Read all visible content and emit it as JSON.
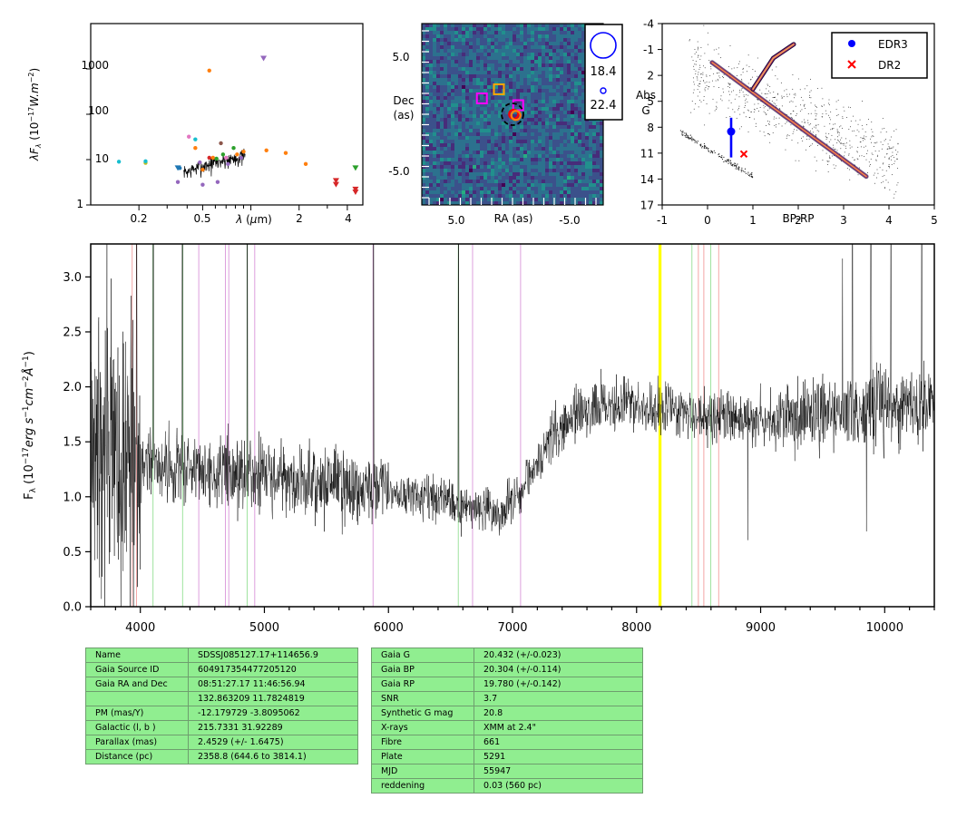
{
  "colors": {
    "spectrum": "#000000",
    "edr3": "#0000ff",
    "dr2": "#ff0000",
    "table_bg": "#90ee90",
    "marker_line": "#ffff00"
  },
  "sed_panel": {
    "ylabel": "λF_λ (10^{-17}W.m^{-2})",
    "xlabel": "λ (μm)",
    "yticks": [
      "1",
      "10",
      "100",
      "1000"
    ],
    "xticks": [
      "0.2",
      "0.5",
      "2",
      "4"
    ]
  },
  "image_panel": {
    "xlabel": "RA (as)",
    "ylabel_line1": "Dec",
    "ylabel_line2": "(as)",
    "xticks": [
      "5.0",
      "-5.0"
    ],
    "yticks": [
      "5.0",
      "-5.0"
    ],
    "mag_large": "18.4",
    "mag_small": "22.4"
  },
  "hr_panel": {
    "ylabel_line1": "Abs",
    "ylabel_line2": "G",
    "xlabel": "BP-RP",
    "yticks": [
      "-4",
      "-1",
      "2",
      "5",
      "8",
      "11",
      "14",
      "17"
    ],
    "xticks": [
      "-1",
      "0",
      "1",
      "2",
      "3",
      "4",
      "5"
    ],
    "legend": [
      "EDR3",
      "DR2"
    ]
  },
  "chart_data": [
    {
      "type": "scatter",
      "name": "sed",
      "xscale": "log",
      "yscale": "log",
      "xlim": [
        0.1,
        5.0
      ],
      "ylim": [
        1,
        10000
      ],
      "points": [
        {
          "x": 0.15,
          "y": 9,
          "color": "#17becf"
        },
        {
          "x": 0.22,
          "y": 8.5,
          "color": "#bcbd22"
        },
        {
          "x": 0.22,
          "y": 9.2,
          "color": "#17becf"
        },
        {
          "x": 0.36,
          "y": 6.5,
          "color": "#1f77b4"
        },
        {
          "x": 0.35,
          "y": 3.2,
          "color": "#9467bd"
        },
        {
          "x": 0.41,
          "y": 32,
          "color": "#e377c2"
        },
        {
          "x": 0.45,
          "y": 28,
          "color": "#17becf"
        },
        {
          "x": 0.45,
          "y": 18,
          "color": "#ff7f0e"
        },
        {
          "x": 0.48,
          "y": 8.7,
          "color": "#9467bd"
        },
        {
          "x": 0.5,
          "y": 2.8,
          "color": "#9467bd"
        },
        {
          "x": 0.5,
          "y": 6,
          "color": "#ff7f0e"
        },
        {
          "x": 0.55,
          "y": 920,
          "color": "#ff7f0e"
        },
        {
          "x": 0.55,
          "y": 11,
          "color": "#d62728"
        },
        {
          "x": 0.58,
          "y": 11,
          "color": "#ff7f0e"
        },
        {
          "x": 0.61,
          "y": 10.5,
          "color": "#2ca02c"
        },
        {
          "x": 0.62,
          "y": 3.2,
          "color": "#9467bd"
        },
        {
          "x": 0.65,
          "y": 23,
          "color": "#8c564b"
        },
        {
          "x": 0.67,
          "y": 13,
          "color": "#2ca02c"
        },
        {
          "x": 0.7,
          "y": 11,
          "color": "#e377c2"
        },
        {
          "x": 0.72,
          "y": 8,
          "color": "#9467bd"
        },
        {
          "x": 0.78,
          "y": 18,
          "color": "#2ca02c"
        },
        {
          "x": 0.82,
          "y": 13,
          "color": "#ff7f0e"
        },
        {
          "x": 0.87,
          "y": 11,
          "color": "#9467bd"
        },
        {
          "x": 0.9,
          "y": 15,
          "color": "#ff7f0e"
        },
        {
          "x": 1.25,
          "y": 16,
          "color": "#ff7f0e"
        },
        {
          "x": 1.65,
          "y": 14,
          "color": "#ff7f0e"
        },
        {
          "x": 2.2,
          "y": 8,
          "color": "#ff7f0e"
        }
      ],
      "upper_limits": [
        {
          "x": 0.35,
          "y": 6.5,
          "color": "#1f77b4"
        },
        {
          "x": 1.2,
          "y": 1700,
          "color": "#9467bd"
        },
        {
          "x": 3.4,
          "y": 3.4,
          "color": "#d62728"
        },
        {
          "x": 3.4,
          "y": 2.8,
          "color": "#d62728"
        },
        {
          "x": 4.5,
          "y": 6.5,
          "color": "#2ca02c"
        },
        {
          "x": 4.5,
          "y": 2.2,
          "color": "#d62728"
        },
        {
          "x": 4.5,
          "y": 1.9,
          "color": "#d62728"
        }
      ],
      "spectrum_segment": {
        "xrange": [
          0.38,
          0.92
        ],
        "yrange": [
          4,
          14
        ]
      }
    },
    {
      "type": "heatmap",
      "name": "sky_image",
      "xlim": [
        8,
        -8
      ],
      "ylim": [
        -8,
        8
      ],
      "markers": [
        {
          "shape": "square",
          "x": 2.7,
          "y": 1.4,
          "color": "#ff00ff"
        },
        {
          "shape": "square",
          "x": 1.2,
          "y": 2.2,
          "color": "#ffa500"
        },
        {
          "shape": "square",
          "x": -0.5,
          "y": 0.8,
          "color": "#ff00ff"
        },
        {
          "shape": "circle",
          "x": -0.1,
          "y": 0.0,
          "color": "#ff0000"
        },
        {
          "shape": "circle",
          "x": -0.3,
          "y": -0.1,
          "color": "#ff7f0e"
        },
        {
          "shape": "dashed-circle",
          "x": 0.0,
          "y": 0.0,
          "color": "#000000"
        }
      ]
    },
    {
      "type": "scatter",
      "name": "hr_diagram",
      "xlim": [
        -1,
        5
      ],
      "ylim": [
        17,
        -4
      ],
      "legend_position": "top-right",
      "series": [
        {
          "name": "EDR3",
          "x": [
            0.52
          ],
          "y": [
            8.5
          ],
          "yerr_low": [
            3.0
          ],
          "yerr_high": [
            1.6
          ],
          "marker": "o"
        },
        {
          "name": "DR2",
          "x": [
            0.8
          ],
          "y": [
            11.1
          ],
          "marker": "x"
        }
      ]
    },
    {
      "type": "line",
      "name": "spectrum",
      "xlabel": "",
      "ylabel": "F_λ (10^{-17}erg s^{-1}cm^{-2}Å^{-1})",
      "xlim": [
        3600,
        10400
      ],
      "ylim": [
        0.0,
        3.3
      ],
      "xticks": [
        4000,
        5000,
        6000,
        7000,
        8000,
        9000,
        10000
      ],
      "yticks": [
        0.0,
        0.5,
        1.0,
        1.5,
        2.0,
        2.5,
        3.0
      ],
      "continuum": [
        [
          3600,
          1.45
        ],
        [
          3800,
          1.4
        ],
        [
          4000,
          1.3
        ],
        [
          4500,
          1.25
        ],
        [
          5000,
          1.2
        ],
        [
          5500,
          1.1
        ],
        [
          6000,
          1.05
        ],
        [
          6500,
          0.95
        ],
        [
          6900,
          0.85
        ],
        [
          7100,
          1.1
        ],
        [
          7300,
          1.5
        ],
        [
          7500,
          1.75
        ],
        [
          7700,
          1.85
        ],
        [
          8200,
          1.8
        ],
        [
          8600,
          1.72
        ],
        [
          9000,
          1.7
        ],
        [
          9500,
          1.75
        ],
        [
          10000,
          1.8
        ],
        [
          10400,
          1.82
        ]
      ],
      "emission_spikes": [
        {
          "x": 3970,
          "y": 3.3
        },
        {
          "x": 4105,
          "y": 3.3
        },
        {
          "x": 4340,
          "y": 3.3
        },
        {
          "x": 4862,
          "y": 3.3
        },
        {
          "x": 5880,
          "y": 3.3
        },
        {
          "x": 6565,
          "y": 3.3
        },
        {
          "x": 9740,
          "y": 3.3
        },
        {
          "x": 9890,
          "y": 3.3
        },
        {
          "x": 10050,
          "y": 3.3
        },
        {
          "x": 10300,
          "y": 3.3
        }
      ],
      "reference_lines": [
        {
          "x": 3934,
          "color": "#f4a6a6"
        },
        {
          "x": 3969,
          "color": "#f4a6a6"
        },
        {
          "x": 4102,
          "color": "#9fe39f"
        },
        {
          "x": 4341,
          "color": "#9fe39f"
        },
        {
          "x": 4471,
          "color": "#dda0dd"
        },
        {
          "x": 4686,
          "color": "#dda0dd"
        },
        {
          "x": 4713,
          "color": "#dda0dd"
        },
        {
          "x": 4861,
          "color": "#9fe39f"
        },
        {
          "x": 4922,
          "color": "#dda0dd"
        },
        {
          "x": 5876,
          "color": "#dda0dd"
        },
        {
          "x": 6563,
          "color": "#9fe39f"
        },
        {
          "x": 6678,
          "color": "#dda0dd"
        },
        {
          "x": 7065,
          "color": "#dda0dd"
        },
        {
          "x": 8183,
          "color": "#ffff00"
        },
        {
          "x": 8195,
          "color": "#ffff00"
        },
        {
          "x": 8446,
          "color": "#9fe39f"
        },
        {
          "x": 8498,
          "color": "#f4a6a6"
        },
        {
          "x": 8542,
          "color": "#f4a6a6"
        },
        {
          "x": 8598,
          "color": "#9fe39f"
        },
        {
          "x": 8662,
          "color": "#f4a6a6"
        }
      ]
    }
  ],
  "table_left": [
    {
      "k": "Name",
      "v": "SDSSJ085127.17+114656.9"
    },
    {
      "k": "Gaia Source ID",
      "v": "604917354477205120"
    },
    {
      "k": "Gaia RA and Dec",
      "v": "08:51:27.17    11:46:56.94"
    },
    {
      "k": "",
      "v": "132.863209    11.7824819"
    },
    {
      "k": "PM (mas/Y)",
      "v": "-12.179729    -3.8095062"
    },
    {
      "k": "Galactic (l, b )",
      "v": "215.7331    31.92289"
    },
    {
      "k": "Parallax (mas)",
      "v": "2.4529 (+/- 1.6475)"
    },
    {
      "k": "Distance (pc)",
      "v": "2358.8 (644.6 to 3814.1)"
    }
  ],
  "table_right": [
    {
      "k": "Gaia G",
      "v": "20.432 (+/-0.023)"
    },
    {
      "k": "Gaia BP",
      "v": "20.304 (+/-0.114)"
    },
    {
      "k": "Gaia RP",
      "v": "19.780 (+/-0.142)"
    },
    {
      "k": "SNR",
      "v": "3.7"
    },
    {
      "k": "Synthetic G mag",
      "v": "20.8"
    },
    {
      "k": "X-rays",
      "v": "XMM at 2.4\""
    },
    {
      "k": "Fibre",
      "v": "661"
    },
    {
      "k": "Plate",
      "v": "5291"
    },
    {
      "k": "MJD",
      "v": "55947"
    },
    {
      "k": "reddening",
      "v": "0.03 (560 pc)"
    }
  ]
}
